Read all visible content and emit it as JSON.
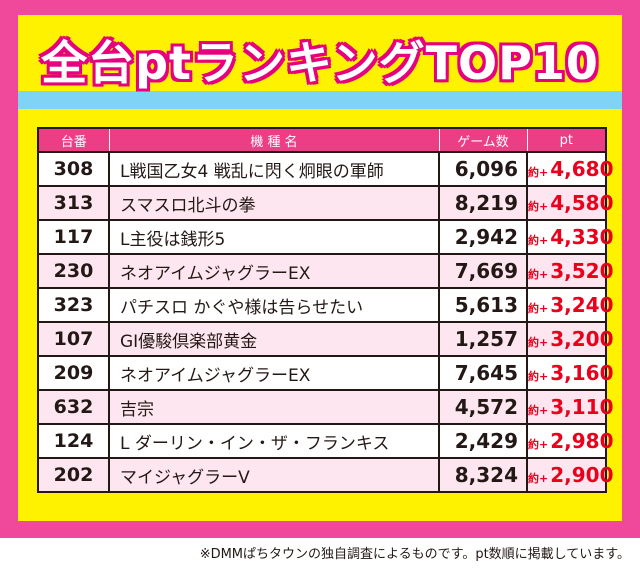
{
  "title": "全台ptランキングTOP10",
  "table": {
    "headers": {
      "no": "台番",
      "name": "機 種 名",
      "games": "ゲーム数",
      "pt": "pt"
    },
    "pt_prefix": "約+",
    "rows": [
      {
        "no": "308",
        "name": "L戦国乙女4 戦乱に閃く炯眼の軍師",
        "games": "6,096",
        "pt": "4,680"
      },
      {
        "no": "313",
        "name": "スマスロ北斗の拳",
        "games": "8,219",
        "pt": "4,580"
      },
      {
        "no": "117",
        "name": "L主役は銭形5",
        "games": "2,942",
        "pt": "4,330"
      },
      {
        "no": "230",
        "name": "ネオアイムジャグラーEX",
        "games": "7,669",
        "pt": "3,520"
      },
      {
        "no": "323",
        "name": "パチスロ かぐや様は告らせたい",
        "games": "5,613",
        "pt": "3,240"
      },
      {
        "no": "107",
        "name": "GI優駿倶楽部黄金",
        "games": "1,257",
        "pt": "3,200"
      },
      {
        "no": "209",
        "name": "ネオアイムジャグラーEX",
        "games": "7,645",
        "pt": "3,160"
      },
      {
        "no": "632",
        "name": "吉宗",
        "games": "4,572",
        "pt": "3,110"
      },
      {
        "no": "124",
        "name": "L ダーリン・イン・ザ・フランキス",
        "games": "2,429",
        "pt": "2,980"
      },
      {
        "no": "202",
        "name": "マイジャグラーV",
        "games": "8,324",
        "pt": "2,900"
      }
    ]
  },
  "footnote": "※DMMぱちタウンの独自調査によるものです。pt数順に掲載しています。",
  "colors": {
    "frame": "#f0489a",
    "panel": "#fff200",
    "stripe": "#7fd4f6",
    "header": "#ec3e85",
    "pt_text": "#e8001c"
  }
}
